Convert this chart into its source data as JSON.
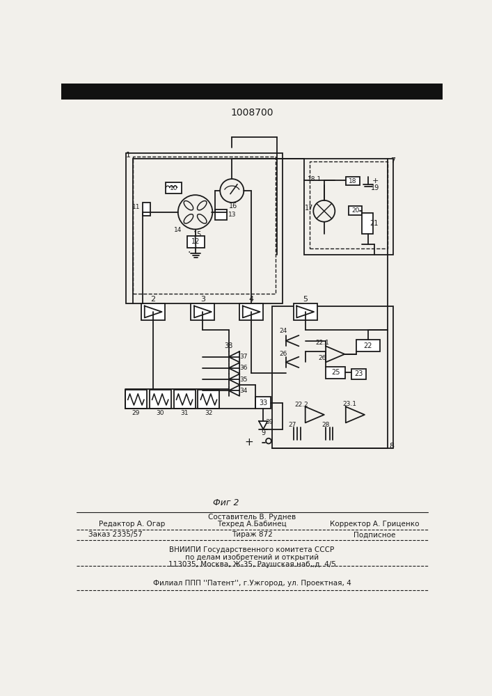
{
  "title": "1008700",
  "fig2_label": "Фиг 2",
  "footer_line1": "Составитель В. Руднев",
  "footer_line2a": "Редактор А. Огар",
  "footer_line2b": "Техред А.Бабинец",
  "footer_line2c": "Корректор А. Гриценко",
  "footer_line3a": "Заказ 2335/57",
  "footer_line3b": "Тираж 872",
  "footer_line3c": "Подписное",
  "footer_line4": "ВНИИПИ Государственного комитета СССР",
  "footer_line5": "по делам изобретений и открытий",
  "footer_line6": "113035, Москва, Ж-35, Раушская наб,,д. 4/5",
  "footer_line7": "Филиал ППП ''Патент'', г.Ужгород, ул. Проектная, 4",
  "bg_color": "#f2f0eb",
  "line_color": "#1a1a1a"
}
